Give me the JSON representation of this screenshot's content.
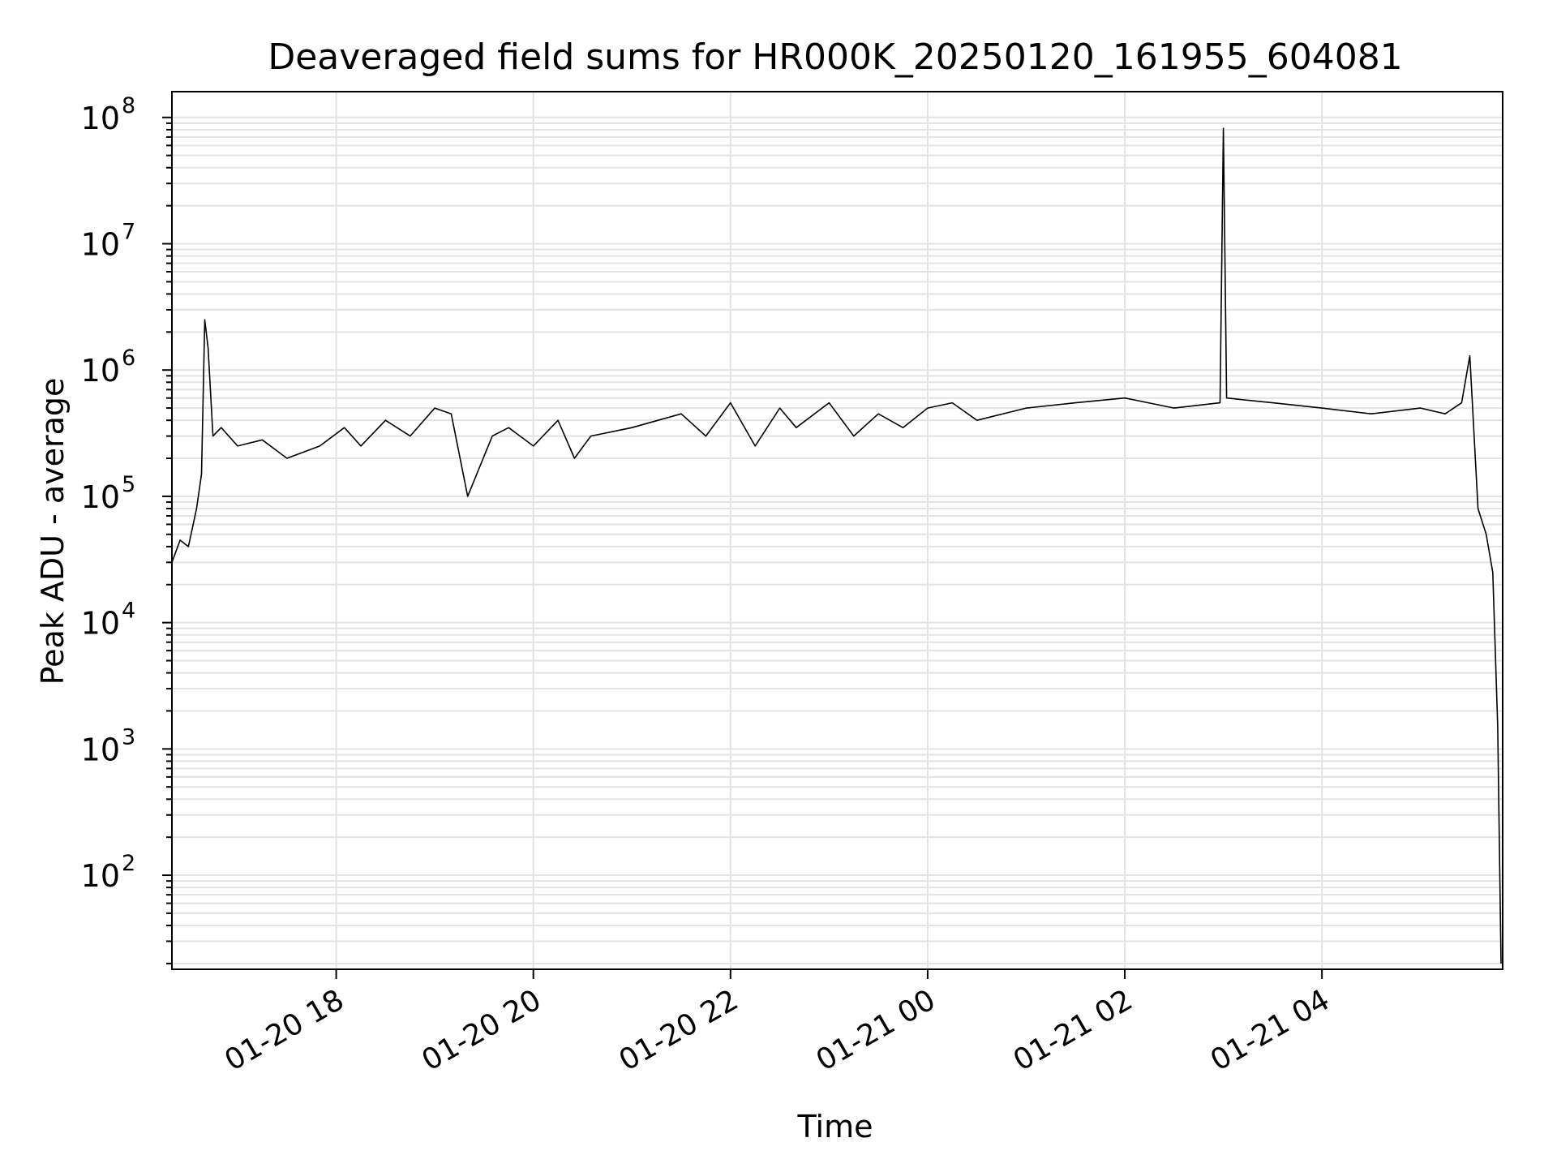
{
  "chart_data": {
    "type": "line",
    "title": "Deaveraged field sums for HR000K_20250120_161955_604081",
    "xlabel": "Time",
    "ylabel": "Peak ADU - average",
    "xlim": [
      "2025-01-20T16:20:00",
      "2025-01-21T05:50:00"
    ],
    "ylim": [
      18,
      160000000
    ],
    "yscale": "log",
    "x_tick_labels": [
      "01-20 18",
      "01-20 20",
      "01-20 22",
      "01-21 00",
      "01-21 02",
      "01-21 04"
    ],
    "x_ticks": [
      "2025-01-20T18:00:00",
      "2025-01-20T20:00:00",
      "2025-01-20T22:00:00",
      "2025-01-21T00:00:00",
      "2025-01-21T02:00:00",
      "2025-01-21T04:00:00"
    ],
    "y_tick_labels": [
      {
        "base": "10",
        "exp": "2",
        "value": 100
      },
      {
        "base": "10",
        "exp": "3",
        "value": 1000
      },
      {
        "base": "10",
        "exp": "4",
        "value": 10000
      },
      {
        "base": "10",
        "exp": "5",
        "value": 100000
      },
      {
        "base": "10",
        "exp": "6",
        "value": 1000000
      },
      {
        "base": "10",
        "exp": "7",
        "value": 10000000
      },
      {
        "base": "10",
        "exp": "8",
        "value": 100000000
      }
    ],
    "grid": true,
    "line_color": "#000000",
    "series": [
      {
        "x": [
          "2025-01-20T16:20:00",
          "2025-01-20T16:25:00",
          "2025-01-20T16:30:00",
          "2025-01-20T16:35:00",
          "2025-01-20T16:38:00",
          "2025-01-20T16:40:00",
          "2025-01-20T16:42:00",
          "2025-01-20T16:45:00",
          "2025-01-20T16:50:00",
          "2025-01-20T17:00:00",
          "2025-01-20T17:15:00",
          "2025-01-20T17:30:00",
          "2025-01-20T17:50:00",
          "2025-01-20T18:05:00",
          "2025-01-20T18:15:00",
          "2025-01-20T18:30:00",
          "2025-01-20T18:45:00",
          "2025-01-20T19:00:00",
          "2025-01-20T19:10:00",
          "2025-01-20T19:20:00",
          "2025-01-20T19:35:00",
          "2025-01-20T19:45:00",
          "2025-01-20T20:00:00",
          "2025-01-20T20:15:00",
          "2025-01-20T20:25:00",
          "2025-01-20T20:35:00",
          "2025-01-20T21:00:00",
          "2025-01-20T21:30:00",
          "2025-01-20T21:45:00",
          "2025-01-20T22:00:00",
          "2025-01-20T22:15:00",
          "2025-01-20T22:30:00",
          "2025-01-20T22:40:00",
          "2025-01-20T23:00:00",
          "2025-01-20T23:15:00",
          "2025-01-20T23:30:00",
          "2025-01-20T23:45:00",
          "2025-01-21T00:00:00",
          "2025-01-21T00:15:00",
          "2025-01-21T00:30:00",
          "2025-01-21T01:00:00",
          "2025-01-21T01:30:00",
          "2025-01-21T02:00:00",
          "2025-01-21T02:30:00",
          "2025-01-21T02:58:00",
          "2025-01-21T03:00:00",
          "2025-01-21T03:02:00",
          "2025-01-21T03:30:00",
          "2025-01-21T04:00:00",
          "2025-01-21T04:30:00",
          "2025-01-21T05:00:00",
          "2025-01-21T05:15:00",
          "2025-01-21T05:25:00",
          "2025-01-21T05:30:00",
          "2025-01-21T05:35:00",
          "2025-01-21T05:40:00",
          "2025-01-21T05:44:00",
          "2025-01-21T05:47:00",
          "2025-01-21T05:49:00"
        ],
        "y": [
          30000,
          45000,
          40000,
          80000,
          150000,
          2500000,
          1500000,
          300000,
          350000,
          250000,
          280000,
          200000,
          250000,
          350000,
          250000,
          400000,
          300000,
          500000,
          450000,
          100000,
          300000,
          350000,
          250000,
          400000,
          200000,
          300000,
          350000,
          450000,
          300000,
          550000,
          250000,
          500000,
          350000,
          550000,
          300000,
          450000,
          350000,
          500000,
          550000,
          400000,
          500000,
          550000,
          600000,
          500000,
          550000,
          82000000,
          600000,
          550000,
          500000,
          450000,
          500000,
          450000,
          550000,
          1300000,
          80000,
          50000,
          25000,
          1500,
          20
        ]
      }
    ]
  }
}
